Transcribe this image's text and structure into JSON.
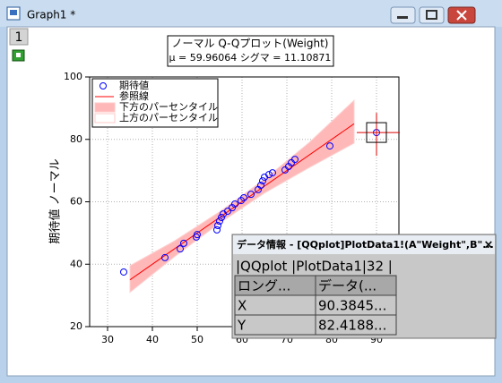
{
  "window": {
    "title": "Graph1 *",
    "layer": "1"
  },
  "chart_data": {
    "type": "scatter",
    "title": "ノーマル Q-Qプロット(Weight)",
    "subtitle": "μ = 59.96064  シグマ = 11.10871",
    "ylabel": "期待値 ノーマル",
    "xlim": [
      26,
      95
    ],
    "ylim": [
      20,
      100
    ],
    "xticks": [
      30,
      40,
      50,
      60,
      70,
      80,
      90
    ],
    "yticks": [
      20,
      40,
      60,
      80,
      100
    ],
    "grid": true,
    "legend": "upper left",
    "series": [
      {
        "name": "期待値",
        "color": "#0000ff",
        "x": [
          33.6,
          42.8,
          46.2,
          47.0,
          49.8,
          50.0,
          54.4,
          54.6,
          55.0,
          55.4,
          55.8,
          56.8,
          57.8,
          58.4,
          59.8,
          60.4,
          62.0,
          63.6,
          64.2,
          64.6,
          65.0,
          66.0,
          66.8,
          69.6,
          70.4,
          71.0,
          71.8,
          79.6,
          90.0
        ],
        "values": [
          37.5,
          42.1,
          44.9,
          46.7,
          48.7,
          49.5,
          51.0,
          52.4,
          53.8,
          55.0,
          56.1,
          57.0,
          58.1,
          59.3,
          60.4,
          61.3,
          62.4,
          63.9,
          65.3,
          66.7,
          67.9,
          68.7,
          69.3,
          70.2,
          71.3,
          72.5,
          73.6,
          77.9,
          82.2
        ]
      },
      {
        "name": "参照線",
        "color": "#ff0000",
        "x": [
          35,
          85
        ],
        "values": [
          35,
          85
        ]
      },
      {
        "name": "下方のパーセンタイル",
        "color": "#ffb8b8",
        "x": [
          35,
          45,
          55,
          65,
          75,
          85
        ],
        "values": [
          31,
          42.5,
          53.2,
          62.8,
          71,
          78.8
        ]
      },
      {
        "name": "上方のパーセンタイル",
        "color": "#ffffff",
        "x": [
          35,
          45,
          55,
          65,
          75,
          85
        ],
        "values": [
          39.5,
          47.5,
          56.8,
          67.2,
          79,
          92.5
        ]
      }
    ]
  },
  "info_panel": {
    "title": "データ情報 - [QQplot]PlotData1!(A\"Weight\",B\"...",
    "close": "×",
    "path": "|QQplot |PlotData1|32 |",
    "headers": [
      "ロング...",
      "データ(..."
    ],
    "rows": [
      [
        "X",
        "90.3845..."
      ],
      [
        "Y",
        "82.4188..."
      ]
    ]
  }
}
